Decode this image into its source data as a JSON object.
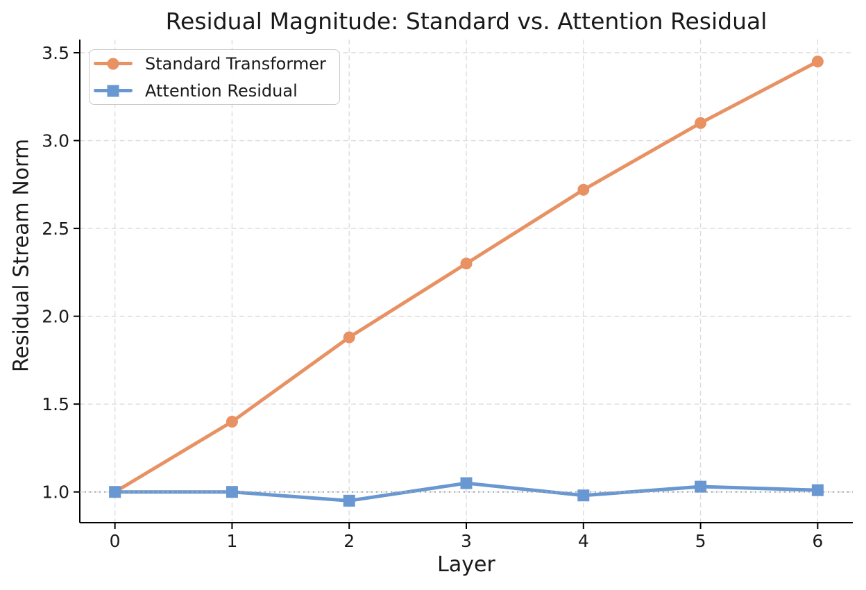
{
  "chart_data": {
    "type": "line",
    "title": "Residual Magnitude: Standard vs. Attention Residual",
    "xlabel": "Layer",
    "ylabel": "Residual Stream Norm",
    "x": [
      0,
      1,
      2,
      3,
      4,
      5,
      6
    ],
    "series": [
      {
        "name": "Standard Transformer",
        "color": "#E89163",
        "marker": "circle",
        "values": [
          1.0,
          1.4,
          1.88,
          2.3,
          2.72,
          3.1,
          3.45
        ]
      },
      {
        "name": "Attention Residual",
        "color": "#6897D1",
        "marker": "square",
        "values": [
          1.0,
          1.0,
          0.95,
          1.05,
          0.98,
          1.03,
          1.01
        ]
      }
    ],
    "xlim": [
      -0.3,
      6.3
    ],
    "ylim": [
      0.825,
      3.575
    ],
    "xticks": [
      0,
      1,
      2,
      3,
      4,
      5,
      6
    ],
    "xtick_labels": [
      "0",
      "1",
      "2",
      "3",
      "4",
      "5",
      "6"
    ],
    "yticks": [
      1.0,
      1.5,
      2.0,
      2.5,
      3.0,
      3.5
    ],
    "ytick_labels": [
      "1.0",
      "1.5",
      "2.0",
      "2.5",
      "3.0",
      "3.5"
    ],
    "grid": true,
    "grid_style": "dashed",
    "legend": {
      "position": "upper left",
      "entries": [
        "Standard Transformer",
        "Attention Residual"
      ]
    },
    "reference_line": {
      "y": 1.0,
      "style": "dotted"
    }
  },
  "style": {
    "accent_orange": "#E89163",
    "accent_blue": "#6897D1",
    "grid_color": "#DCDCDC",
    "reference_line_color": "#A8A8A8",
    "spine_color": "#000000",
    "text_color": "#1A1A1A",
    "legend_border_color": "#C9C9C9"
  }
}
